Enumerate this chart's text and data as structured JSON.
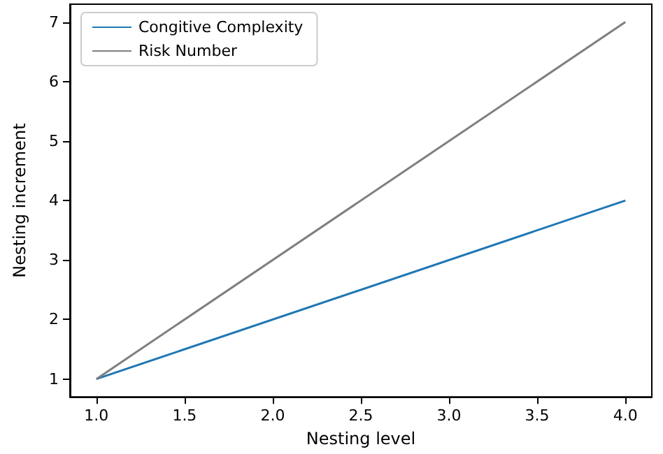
{
  "chart_data": {
    "type": "line",
    "xlabel": "Nesting level",
    "ylabel": "Nesting increment",
    "x": [
      1,
      4
    ],
    "series": [
      {
        "name": "Congitive Complexity",
        "color": "#1f77b4",
        "values": [
          1,
          4
        ]
      },
      {
        "name": "Risk Number",
        "color": "#7f7f7f",
        "values": [
          1,
          7
        ]
      }
    ],
    "xlim": [
      0.85,
      4.15
    ],
    "ylim": [
      0.7,
      7.3
    ],
    "xticks": [
      {
        "value": 1,
        "label": "1.0"
      },
      {
        "value": 1.5,
        "label": "1.5"
      },
      {
        "value": 2,
        "label": "2.0"
      },
      {
        "value": 2.5,
        "label": "2.5"
      },
      {
        "value": 3,
        "label": "3.0"
      },
      {
        "value": 3.5,
        "label": "3.5"
      },
      {
        "value": 4,
        "label": "4.0"
      }
    ],
    "yticks": [
      1,
      2,
      3,
      4,
      5,
      6,
      7
    ],
    "grid": false,
    "legend": "top left"
  }
}
